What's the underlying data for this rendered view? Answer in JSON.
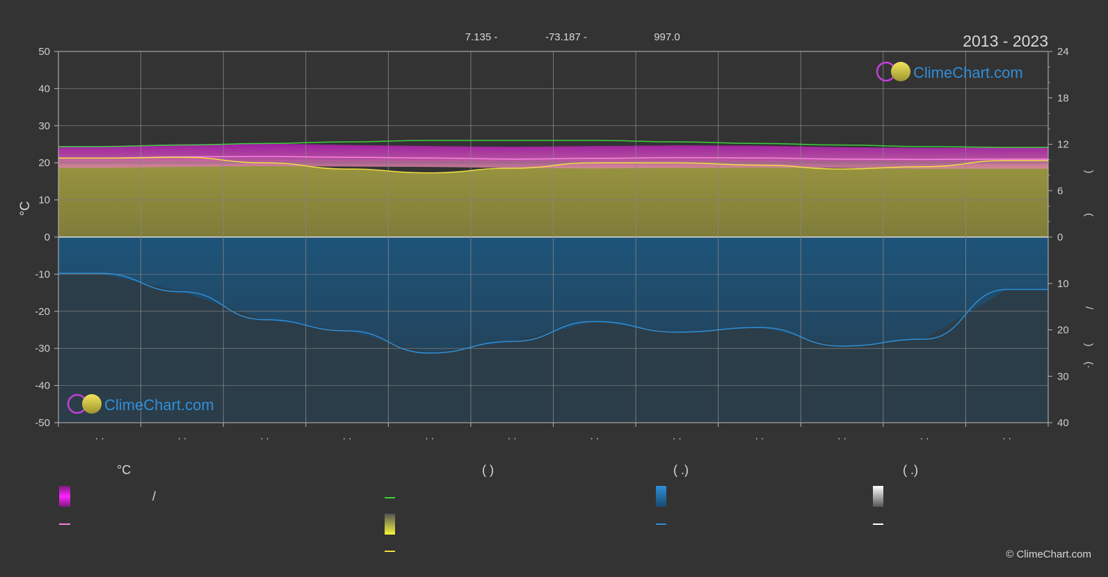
{
  "header": {
    "coords": [
      "7.135 -",
      "-73.187 -",
      "997.0"
    ],
    "year_range": "2013 - 2023"
  },
  "brand": {
    "name": "ClimeChart.com",
    "copyright": "© ClimeChart.com"
  },
  "axes": {
    "left_unit": "°C",
    "left_ticks": [
      50,
      40,
      30,
      20,
      10,
      0,
      -10,
      -20,
      -30,
      -40,
      -50
    ],
    "right_top_ticks": [
      24,
      18,
      12,
      6,
      0
    ],
    "right_bottom_ticks": [
      10,
      20,
      30,
      40
    ],
    "right_marks": [
      ")",
      "(",
      "/",
      ")",
      "(·"
    ],
    "month_marks": [
      ". .",
      ". .",
      ". .",
      ". .",
      ". .",
      ". .",
      ". .",
      ". .",
      ". .",
      ". .",
      ". .",
      ". ."
    ]
  },
  "legend": {
    "col1_title": "°C",
    "col1_text": "/",
    "col2_title": "(          )",
    "col3_title": "(    .)",
    "col4_title": "(    .)"
  },
  "colors": {
    "background": "#333333",
    "temp_band": "#c21fc0",
    "temp_line": "#ff7fe6",
    "daylight": "#3fcf3f",
    "sunshine_fill": "#8e8a3c",
    "sunshine_line": "#f0e040",
    "rain_fill": "#1d5f8e",
    "rain_line": "#2f8fd8",
    "snow": "#ffffff"
  },
  "chart_data": {
    "type": "area",
    "x": [
      0.5,
      1.5,
      2.5,
      3.5,
      4.5,
      5.5,
      6.5,
      7.5,
      8.5,
      9.5,
      10.5,
      11.5
    ],
    "series": [
      {
        "key": "daylight_hours",
        "values": [
          11.7,
          11.9,
          12.1,
          12.3,
          12.5,
          12.5,
          12.5,
          12.3,
          12.1,
          11.9,
          11.7,
          11.6
        ]
      },
      {
        "key": "sunshine_hours",
        "values": [
          10.2,
          10.3,
          9.6,
          8.8,
          8.3,
          8.9,
          9.6,
          9.6,
          9.3,
          8.8,
          9.1,
          9.9
        ]
      },
      {
        "key": "temp_max",
        "values": [
          24.5,
          25.0,
          25.2,
          24.8,
          24.5,
          24.3,
          24.5,
          24.7,
          24.6,
          24.2,
          24.0,
          24.1
        ]
      },
      {
        "key": "temp_mean",
        "values": [
          21.3,
          21.6,
          21.7,
          21.5,
          21.3,
          21.0,
          21.2,
          21.4,
          21.3,
          21.0,
          20.9,
          21.0
        ]
      },
      {
        "key": "temp_min",
        "values": [
          18.6,
          18.9,
          19.1,
          19.0,
          18.9,
          18.6,
          18.5,
          18.6,
          18.7,
          18.6,
          18.4,
          18.4
        ]
      },
      {
        "key": "precipitation_mm",
        "values": [
          7.8,
          11.8,
          17.8,
          20.2,
          25.0,
          22.5,
          18.2,
          20.5,
          19.5,
          23.5,
          22.0,
          11.3
        ]
      }
    ],
    "xlim": [
      0,
      12
    ],
    "ylim": [
      -50,
      50
    ],
    "y2_top_lim": [
      0,
      24
    ],
    "y2_bottom_lim": [
      0,
      40
    ]
  }
}
